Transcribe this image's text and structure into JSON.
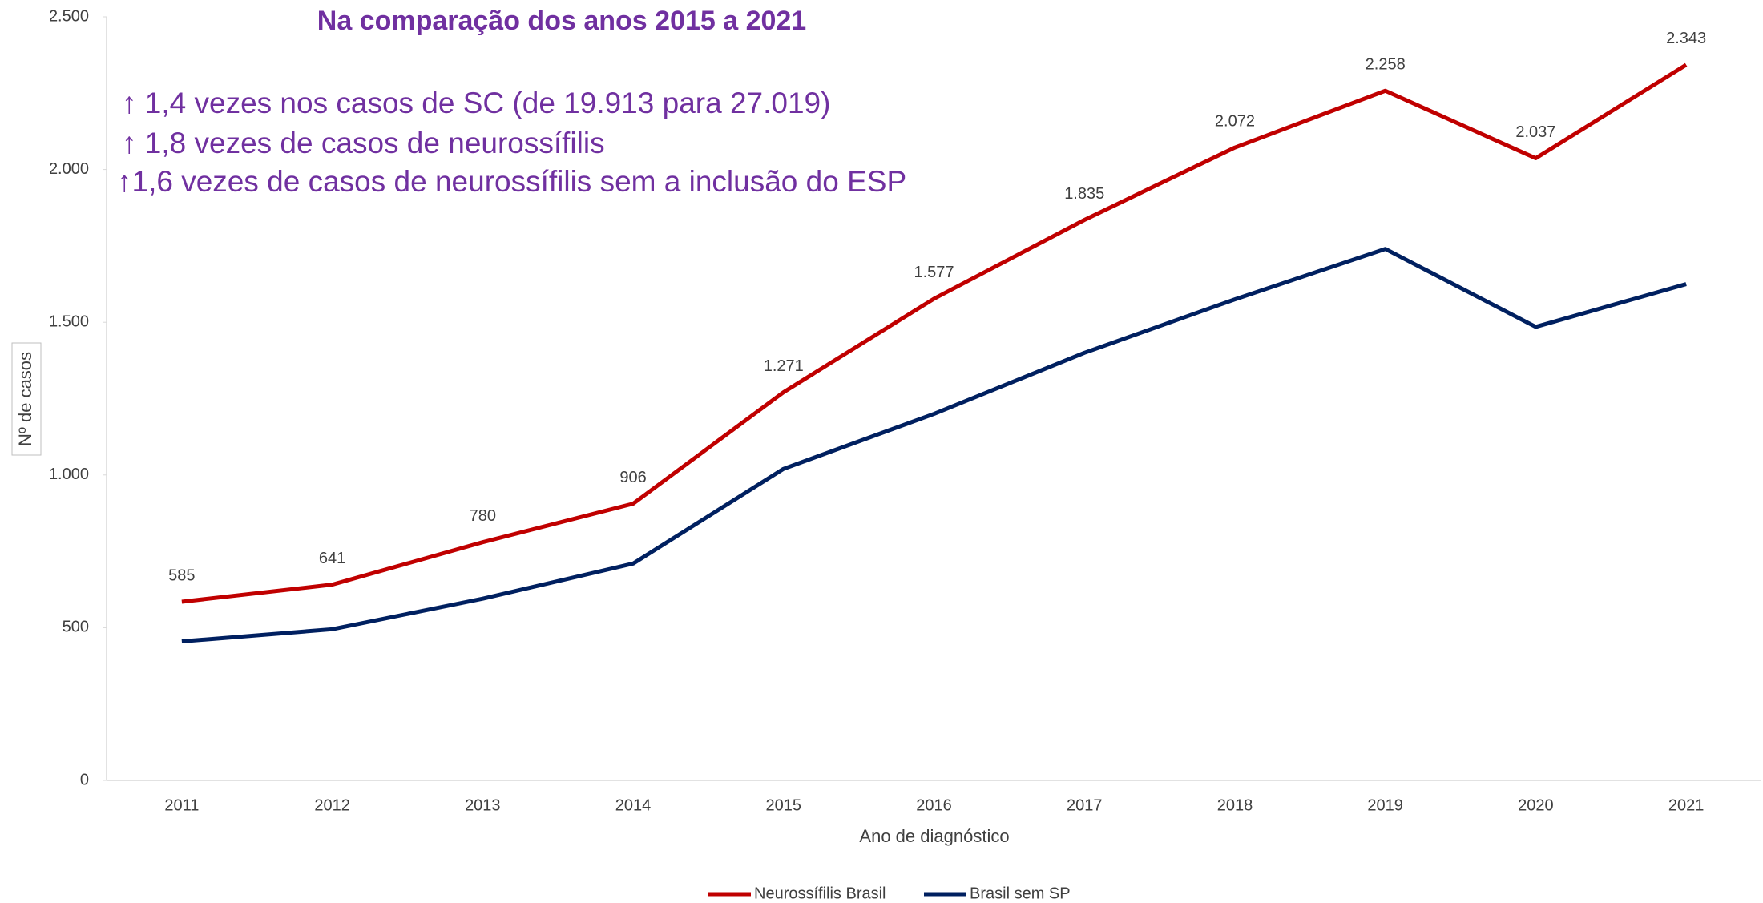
{
  "chart_data": {
    "type": "line",
    "title": "Na comparação dos anos 2015 a 2021",
    "annotations": [
      "↑ 1,4 vezes nos casos de SC (de 19.913 para 27.019)",
      "↑ 1,8 vezes de casos de neurossífilis",
      "↑1,6 vezes de casos de neurossífilis sem a inclusão do ESP"
    ],
    "x_label": "Ano de diagnóstico",
    "y_label": "Nº de casos",
    "categories": [
      "2011",
      "2012",
      "2013",
      "2014",
      "2015",
      "2016",
      "2017",
      "2018",
      "2019",
      "2020",
      "2021"
    ],
    "series": [
      {
        "name": "Neurossífilis Brasil",
        "color": "#c00000",
        "values": [
          585,
          641,
          780,
          906,
          1271,
          1577,
          1835,
          2072,
          2258,
          2037,
          2343
        ],
        "value_labels": [
          "585",
          "641",
          "780",
          "906",
          "1.271",
          "1.577",
          "1.835",
          "2.072",
          "2.258",
          "2.037",
          "2.343"
        ]
      },
      {
        "name": "Brasil sem SP",
        "color": "#002060",
        "values": [
          455,
          495,
          595,
          710,
          1020,
          1200,
          1400,
          1575,
          1740,
          1485,
          1625
        ]
      }
    ],
    "ylim": [
      0,
      2500
    ],
    "yticks": [
      0,
      500,
      {
        "value": 1000,
        "label": "1.000"
      },
      {
        "value": 1500,
        "label": "1.500"
      },
      {
        "value": 2000,
        "label": "2.000"
      },
      {
        "value": 2500,
        "label": "2.500"
      }
    ],
    "grid": false,
    "legend": "bottom"
  }
}
